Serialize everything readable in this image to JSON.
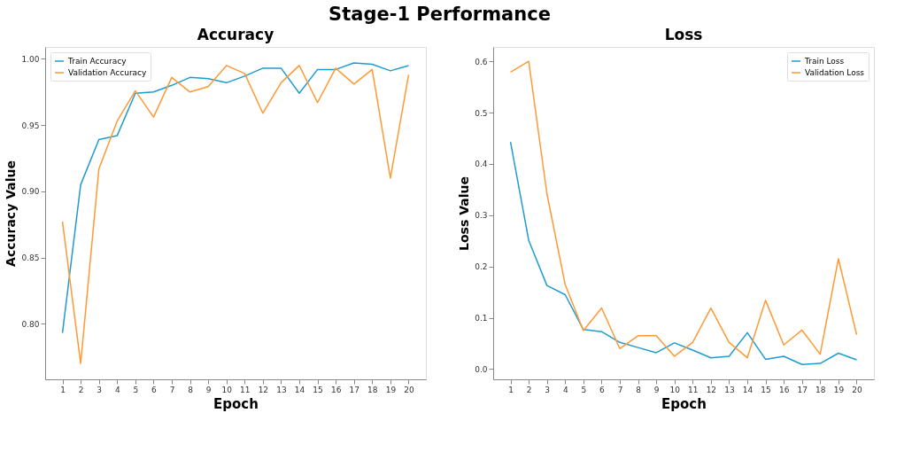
{
  "chart_data": [
    {
      "type": "line",
      "title": "Accuracy",
      "annotations": [
        "Stage-1 Performance"
      ],
      "xlabel": "Epoch",
      "ylabel": "Accuracy Value",
      "x": [
        1,
        2,
        3,
        4,
        5,
        6,
        7,
        8,
        9,
        10,
        11,
        12,
        13,
        14,
        15,
        16,
        17,
        18,
        19,
        20
      ],
      "series": [
        {
          "name": "Train Accuracy",
          "color": "#1f9bd1",
          "values": [
            0.793,
            0.905,
            0.939,
            0.942,
            0.974,
            0.975,
            0.98,
            0.986,
            0.985,
            0.982,
            0.987,
            0.993,
            0.993,
            0.974,
            0.992,
            0.992,
            0.997,
            0.996,
            0.991,
            0.995
          ]
        },
        {
          "name": "Validation Accuracy",
          "color": "#ff9933",
          "values": [
            0.877,
            0.77,
            0.917,
            0.953,
            0.976,
            0.956,
            0.986,
            0.975,
            0.979,
            0.995,
            0.989,
            0.959,
            0.982,
            0.995,
            0.967,
            0.993,
            0.981,
            0.992,
            0.91,
            0.988
          ]
        }
      ],
      "xlim": [
        0.05,
        20.95
      ],
      "xticks": [
        1,
        2,
        3,
        4,
        5,
        6,
        7,
        8,
        9,
        10,
        11,
        12,
        13,
        14,
        15,
        16,
        17,
        18,
        19,
        20
      ],
      "ylim": [
        0.758,
        1.009
      ],
      "yticks": [
        {
          "value": 0.8,
          "label": "0.80"
        },
        {
          "value": 0.85,
          "label": "0.85"
        },
        {
          "value": 0.9,
          "label": "0.90"
        },
        {
          "value": 0.95,
          "label": "0.95"
        },
        {
          "value": 1.0,
          "label": "1.00"
        }
      ],
      "grid": false,
      "legend": "top left",
      "marker": "none",
      "line_style": "solid"
    },
    {
      "type": "line",
      "title": "Loss",
      "xlabel": "Epoch",
      "ylabel": "Loss Value",
      "x": [
        1,
        2,
        3,
        4,
        5,
        6,
        7,
        8,
        9,
        10,
        11,
        12,
        13,
        14,
        15,
        16,
        17,
        18,
        19,
        20
      ],
      "series": [
        {
          "name": "Train Loss",
          "color": "#1f9bd1",
          "values": [
            0.443,
            0.251,
            0.163,
            0.145,
            0.077,
            0.073,
            0.052,
            0.042,
            0.032,
            0.051,
            0.037,
            0.022,
            0.025,
            0.071,
            0.019,
            0.025,
            0.009,
            0.011,
            0.031,
            0.018
          ]
        },
        {
          "name": "Validation Loss",
          "color": "#ff9933",
          "values": [
            0.579,
            0.6,
            0.342,
            0.165,
            0.075,
            0.119,
            0.04,
            0.065,
            0.065,
            0.025,
            0.052,
            0.119,
            0.052,
            0.022,
            0.134,
            0.047,
            0.076,
            0.029,
            0.215,
            0.067
          ]
        }
      ],
      "xlim": [
        0.05,
        20.95
      ],
      "xticks": [
        1,
        2,
        3,
        4,
        5,
        6,
        7,
        8,
        9,
        10,
        11,
        12,
        13,
        14,
        15,
        16,
        17,
        18,
        19,
        20
      ],
      "ylim": [
        -0.02,
        0.628
      ],
      "yticks": [
        {
          "value": 0.0,
          "label": "0.0"
        },
        {
          "value": 0.1,
          "label": "0.1"
        },
        {
          "value": 0.2,
          "label": "0.2"
        },
        {
          "value": 0.3,
          "label": "0.3"
        },
        {
          "value": 0.4,
          "label": "0.4"
        },
        {
          "value": 0.5,
          "label": "0.5"
        },
        {
          "value": 0.6,
          "label": "0.6"
        }
      ],
      "grid": false,
      "legend": "top right",
      "marker": "none",
      "line_style": "solid"
    }
  ]
}
